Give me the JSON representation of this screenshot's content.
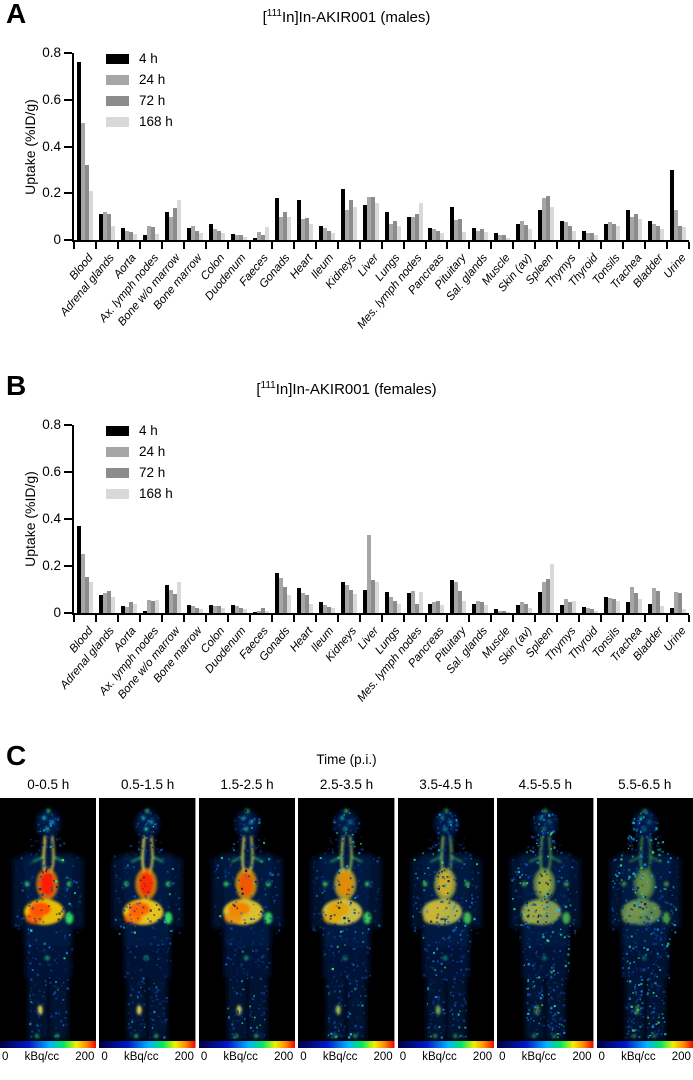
{
  "panels": [
    {
      "letter": "A",
      "title_bracket": "[",
      "title_isotope": "111",
      "title_rest": "In]In-AKIR001 (males)"
    },
    {
      "letter": "B",
      "title_bracket": "[",
      "title_isotope": "111",
      "title_rest": "In]In-AKIR001 (females)"
    },
    {
      "letter": "C"
    }
  ],
  "chart_data": [
    {
      "type": "bar",
      "title": "[111In]In-AKIR001 (males)",
      "ylabel": "Uptake (%ID/g)",
      "ylim": [
        0,
        0.8
      ],
      "yticks": [
        0,
        0.2,
        0.4,
        0.6,
        0.8
      ],
      "grid": false,
      "legend_position": "upper-left-inside",
      "legend": [
        "4 h",
        "24 h",
        "72 h",
        "168 h"
      ],
      "series_colors": [
        "#000000",
        "#a6a6a6",
        "#8c8c8c",
        "#d9d9d9"
      ],
      "categories": [
        "Blood",
        "Adrenal glands",
        "Aorta",
        "Ax. lymph nodes",
        "Bone w/o marrow",
        "Bone marrow",
        "Colon",
        "Duodenum",
        "Faeces",
        "Gonads",
        "Heart",
        "Ileum",
        "Kidneys",
        "Liver",
        "Lungs",
        "Mes. lymph nodes",
        "Pancreas",
        "Pituitary",
        "Sal. glands",
        "Muscle",
        "Skin (av)",
        "Spleen",
        "Thymys",
        "Thyroid",
        "Tonsils",
        "Trachea",
        "Bladder",
        "Urine"
      ],
      "series": [
        {
          "name": "4 h",
          "values": [
            0.76,
            0.11,
            0.05,
            0.02,
            0.12,
            0.05,
            0.07,
            0.025,
            0.01,
            0.18,
            0.17,
            0.06,
            0.22,
            0.15,
            0.12,
            0.1,
            0.05,
            0.14,
            0.05,
            0.03,
            0.07,
            0.13,
            0.08,
            0.04,
            0.07,
            0.13,
            0.08,
            0.3
          ]
        },
        {
          "name": "24 h",
          "values": [
            0.5,
            0.12,
            0.04,
            0.06,
            0.1,
            0.06,
            0.045,
            0.02,
            0.035,
            0.1,
            0.09,
            0.05,
            0.13,
            0.185,
            0.07,
            0.1,
            0.045,
            0.085,
            0.04,
            0.02,
            0.08,
            0.18,
            0.075,
            0.03,
            0.075,
            0.1,
            0.07,
            0.13
          ]
        },
        {
          "name": "72 h",
          "values": [
            0.32,
            0.11,
            0.035,
            0.055,
            0.135,
            0.04,
            0.04,
            0.02,
            0.02,
            0.12,
            0.095,
            0.04,
            0.17,
            0.185,
            0.08,
            0.11,
            0.04,
            0.09,
            0.045,
            0.02,
            0.065,
            0.19,
            0.06,
            0.03,
            0.07,
            0.11,
            0.06,
            0.06
          ]
        },
        {
          "name": "168 h",
          "values": [
            0.21,
            0.06,
            0.025,
            0.025,
            0.17,
            0.03,
            0.03,
            0.015,
            0.055,
            0.1,
            0.07,
            0.03,
            0.14,
            0.16,
            0.06,
            0.16,
            0.03,
            0.035,
            0.035,
            0.01,
            0.045,
            0.14,
            0.04,
            0.02,
            0.06,
            0.09,
            0.045,
            0.055
          ]
        }
      ]
    },
    {
      "type": "bar",
      "title": "[111In]In-AKIR001 (females)",
      "ylabel": "Uptake (%ID/g)",
      "ylim": [
        0,
        0.8
      ],
      "yticks": [
        0,
        0.2,
        0.4,
        0.6,
        0.8
      ],
      "grid": false,
      "legend_position": "upper-left-inside",
      "legend": [
        "4 h",
        "24 h",
        "72 h",
        "168 h"
      ],
      "series_colors": [
        "#000000",
        "#a6a6a6",
        "#8c8c8c",
        "#d9d9d9"
      ],
      "categories": [
        "Blood",
        "Adrenal glands",
        "Aorta",
        "Ax. lymph nodes",
        "Bone w/o marrow",
        "Bone marrow",
        "Colon",
        "Duodenum",
        "Faeces",
        "Gonads",
        "Heart",
        "Ileum",
        "Kidneys",
        "Liver",
        "Lungs",
        "Mes. lymph nodes",
        "Pancreas",
        "Pituitary",
        "Sal. glands",
        "Muscle",
        "Skin (av)",
        "Spleen",
        "Thymys",
        "Thyroid",
        "Tonsils",
        "Trachea",
        "Bladder",
        "Urine"
      ],
      "series": [
        {
          "name": "4 h",
          "values": [
            0.37,
            0.075,
            0.03,
            0.01,
            0.12,
            0.035,
            0.035,
            0.035,
            0.005,
            0.17,
            0.105,
            0.045,
            0.13,
            0.1,
            0.09,
            0.085,
            0.04,
            0.14,
            0.04,
            0.015,
            0.035,
            0.09,
            0.035,
            0.025,
            0.07,
            0.045,
            0.04,
            0.02
          ]
        },
        {
          "name": "24 h",
          "values": [
            0.25,
            0.085,
            0.025,
            0.055,
            0.1,
            0.03,
            0.03,
            0.03,
            0.01,
            0.15,
            0.085,
            0.035,
            0.12,
            0.33,
            0.07,
            0.095,
            0.045,
            0.13,
            0.05,
            0.01,
            0.045,
            0.13,
            0.06,
            0.02,
            0.065,
            0.11,
            0.105,
            0.09
          ]
        },
        {
          "name": "72 h",
          "values": [
            0.155,
            0.095,
            0.045,
            0.05,
            0.08,
            0.02,
            0.03,
            0.02,
            0.02,
            0.11,
            0.075,
            0.025,
            0.1,
            0.14,
            0.05,
            0.04,
            0.05,
            0.095,
            0.045,
            0.01,
            0.04,
            0.145,
            0.045,
            0.015,
            0.06,
            0.085,
            0.095,
            0.085
          ]
        },
        {
          "name": "168 h",
          "values": [
            0.13,
            0.07,
            0.04,
            0.055,
            0.13,
            0.015,
            0.02,
            0.015,
            0.01,
            0.075,
            0.04,
            0.02,
            0.08,
            0.13,
            0.04,
            0.09,
            0.035,
            0.05,
            0.035,
            0.005,
            0.02,
            0.21,
            0.05,
            0.01,
            0.05,
            0.06,
            0.03,
            0.015
          ]
        }
      ]
    }
  ],
  "spect_panel": {
    "title": "Time (p.i.)",
    "frames": [
      "0-0.5 h",
      "0.5-1.5 h",
      "1.5-2.5 h",
      "2.5-3.5 h",
      "3.5-4.5 h",
      "4.5-5.5 h",
      "5.5-6.5 h"
    ],
    "colorbar": {
      "min": "0",
      "unit": "kBq/cc",
      "max": "200"
    }
  }
}
